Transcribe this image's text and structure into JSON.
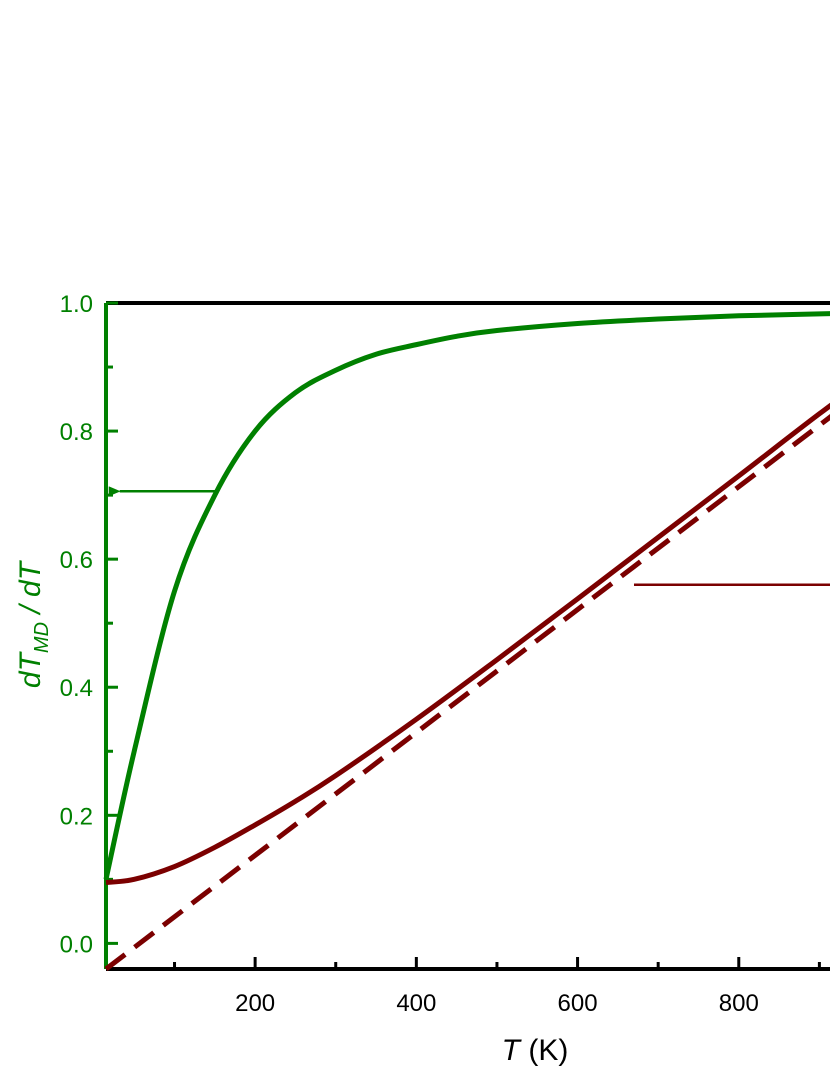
{
  "chart_data": {
    "type": "line",
    "xlabel": {
      "var": "T",
      "unit": " (K)"
    },
    "ylabel": {
      "d1": "d",
      "T1": "T",
      "sub": "MD",
      "mid": " / d",
      "T2": "T"
    },
    "xlim": [
      15,
      1000
    ],
    "ylim": [
      -0.04,
      1.0
    ],
    "xticks": [
      200,
      400,
      600,
      800
    ],
    "yticks": [
      0.0,
      0.2,
      0.4,
      0.6,
      0.8,
      1.0
    ],
    "ytick_labels": [
      "0.0",
      "0.2",
      "0.4",
      "0.6",
      "0.8",
      "1.0"
    ],
    "grid": false,
    "series": [
      {
        "axis": "left",
        "style": "solid",
        "color": "#008000",
        "x": [
          15,
          50,
          100,
          150,
          200,
          250,
          300,
          350,
          400,
          450,
          500,
          600,
          700,
          800,
          900,
          1000
        ],
        "y": [
          0.1,
          0.3,
          0.55,
          0.7,
          0.8,
          0.86,
          0.895,
          0.92,
          0.935,
          0.948,
          0.957,
          0.968,
          0.975,
          0.98,
          0.983,
          0.986
        ]
      },
      {
        "axis": "right",
        "style": "solid",
        "color": "#7b0000",
        "x": [
          15,
          50,
          100,
          150,
          200,
          250,
          300,
          400,
          500,
          600,
          700,
          800,
          900,
          1000
        ],
        "y": [
          0.095,
          0.1,
          0.12,
          0.15,
          0.185,
          0.222,
          0.262,
          0.35,
          0.443,
          0.538,
          0.634,
          0.73,
          0.827,
          0.92
        ]
      },
      {
        "axis": "right",
        "style": "dashed",
        "color": "#7b0000",
        "x": [
          15,
          1000
        ],
        "y": [
          -0.04,
          0.905
        ]
      }
    ],
    "annotations": [
      {
        "type": "arrow",
        "color": "#008000",
        "from": [
          155,
          0.706
        ],
        "to": [
          32,
          0.706
        ]
      },
      {
        "type": "arrow",
        "color": "#7b0000",
        "from": [
          670,
          0.56
        ],
        "to": [
          1000,
          0.56
        ]
      }
    ]
  }
}
